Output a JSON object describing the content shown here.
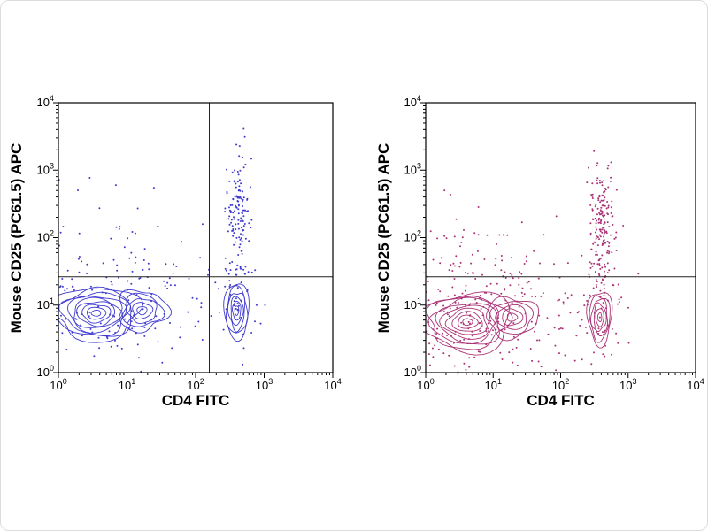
{
  "figure": {
    "background": "#ffffff",
    "panels": 2
  },
  "chart_data": [
    {
      "type": "scatter",
      "subtype": "flow-cytometry-contour",
      "panel": "left",
      "color": "#3f3bcf",
      "xlabel": "CD4 FITC",
      "ylabel": "Mouse CD25 (PC61.5) APC",
      "xscale": "log10",
      "yscale": "log10",
      "xlim_log": [
        0,
        4
      ],
      "ylim_log": [
        0,
        4
      ],
      "tick_base": "10",
      "tick_exponents": [
        0,
        1,
        2,
        3,
        4
      ],
      "quadrant": {
        "vertical": true,
        "horizontal": true,
        "x_log": 2.2,
        "y_log": 1.42
      },
      "contours": [
        {
          "name": "CD4-neg CD25-neg main",
          "cx": 0.55,
          "cy": 0.88,
          "sx": 0.62,
          "sy": 0.4,
          "levels": 9,
          "seed": 11
        },
        {
          "name": "CD4-neg shoulder",
          "cx": 1.22,
          "cy": 0.92,
          "sx": 0.36,
          "sy": 0.3,
          "levels": 5,
          "seed": 12
        },
        {
          "name": "CD4-pos CD25-neg",
          "cx": 2.6,
          "cy": 0.92,
          "sx": 0.18,
          "sy": 0.42,
          "levels": 6,
          "seed": 13
        }
      ],
      "dots": [
        {
          "name": "background-noise",
          "cx": 0.7,
          "cy": 1.05,
          "sx": 0.75,
          "sy": 0.52,
          "n": 150,
          "seed": 21
        },
        {
          "name": "upper-noise",
          "cx": 0.55,
          "cy": 1.95,
          "sx": 0.6,
          "sy": 0.5,
          "n": 28,
          "seed": 22
        },
        {
          "name": "CD4-pos CD25-pos",
          "cx": 2.62,
          "cy": 2.35,
          "sx": 0.09,
          "sy": 0.44,
          "n": 135,
          "seed": 23
        },
        {
          "name": "CD4-pos fringe",
          "cx": 2.6,
          "cy": 1.15,
          "sx": 0.2,
          "sy": 0.45,
          "n": 40,
          "seed": 24
        },
        {
          "name": "mid-sparse",
          "cx": 1.8,
          "cy": 1.2,
          "sx": 0.5,
          "sy": 0.5,
          "n": 22,
          "seed": 25
        }
      ]
    },
    {
      "type": "scatter",
      "subtype": "flow-cytometry-contour",
      "panel": "right",
      "color": "#aa3377",
      "xlabel": "CD4 FITC",
      "ylabel": "Mouse CD25 (PC61.5) APC",
      "xscale": "log10",
      "yscale": "log10",
      "xlim_log": [
        0,
        4
      ],
      "ylim_log": [
        0,
        4
      ],
      "tick_base": "10",
      "tick_exponents": [
        0,
        1,
        2,
        3,
        4
      ],
      "quadrant": {
        "vertical": false,
        "horizontal": true,
        "x_log": 2.2,
        "y_log": 1.42
      },
      "contours": [
        {
          "name": "CD4-neg CD25-neg main",
          "cx": 0.62,
          "cy": 0.75,
          "sx": 0.66,
          "sy": 0.44,
          "levels": 9,
          "seed": 31
        },
        {
          "name": "CD4-neg shoulder",
          "cx": 1.28,
          "cy": 0.82,
          "sx": 0.38,
          "sy": 0.3,
          "levels": 5,
          "seed": 32
        },
        {
          "name": "CD4-pos CD25-neg",
          "cx": 2.58,
          "cy": 0.82,
          "sx": 0.18,
          "sy": 0.4,
          "levels": 6,
          "seed": 33
        }
      ],
      "dots": [
        {
          "name": "background-noise",
          "cx": 0.78,
          "cy": 0.88,
          "sx": 0.8,
          "sy": 0.55,
          "n": 260,
          "seed": 41
        },
        {
          "name": "upper-noise",
          "cx": 0.6,
          "cy": 1.95,
          "sx": 0.55,
          "sy": 0.45,
          "n": 35,
          "seed": 42
        },
        {
          "name": "CD4-pos CD25-pos",
          "cx": 2.6,
          "cy": 2.25,
          "sx": 0.1,
          "sy": 0.48,
          "n": 175,
          "seed": 43
        },
        {
          "name": "CD4-pos fringe",
          "cx": 2.58,
          "cy": 1.05,
          "sx": 0.2,
          "sy": 0.5,
          "n": 55,
          "seed": 44
        },
        {
          "name": "mid-sparse",
          "cx": 1.8,
          "cy": 1.1,
          "sx": 0.55,
          "sy": 0.5,
          "n": 28,
          "seed": 45
        }
      ]
    }
  ]
}
